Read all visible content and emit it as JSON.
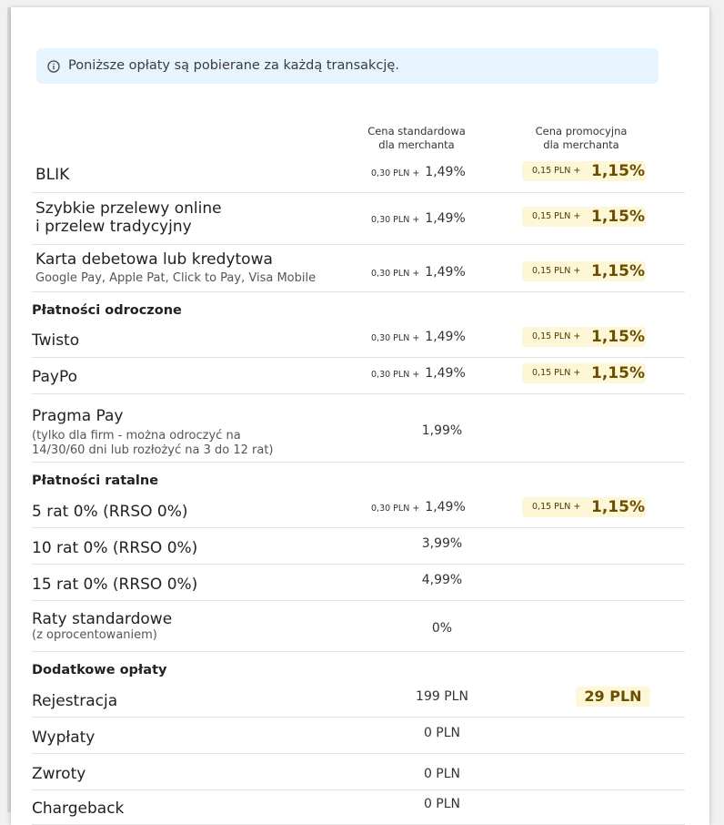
{
  "notice": {
    "text": "Poniższe opłaty są pobierane za każdą transakcję."
  },
  "columns": {
    "standard_line1": "Cena standardowa",
    "standard_line2": "dla merchanta",
    "promo_line1": "Cena promocyjna",
    "promo_line2": "dla merchanta"
  },
  "rows": {
    "blik": {
      "name": "BLIK",
      "std_fixed": "0,30 PLN +",
      "std_pct": "1,49%",
      "promo_fixed": "0,15 PLN +",
      "promo_pct": "1,15%"
    },
    "przelewy": {
      "name1": "Szybkie przelewy online",
      "name2": "i przelew tradycyjny",
      "std_fixed": "0,30 PLN +",
      "std_pct": "1,49%",
      "promo_fixed": "0,15 PLN +",
      "promo_pct": "1,15%"
    },
    "karta": {
      "name": "Karta debetowa lub kredytowa",
      "sub": "Google Pay, Apple Pat, Click to Pay, Visa Mobile",
      "std_fixed": "0,30 PLN +",
      "std_pct": "1,49%",
      "promo_fixed": "0,15 PLN +",
      "promo_pct": "1,15%"
    },
    "twisto": {
      "name": "Twisto",
      "std_fixed": "0,30 PLN +",
      "std_pct": "1,49%",
      "promo_fixed": "0,15 PLN +",
      "promo_pct": "1,15%"
    },
    "paypo": {
      "name": "PayPo",
      "std_fixed": "0,30 PLN +",
      "std_pct": "1,49%",
      "promo_fixed": "0,15 PLN +",
      "promo_pct": "1,15%"
    },
    "pragma": {
      "name": "Pragma Pay",
      "sub1": "(tylko dla firm - można odroczyć na",
      "sub2": "14/30/60 dni lub rozłożyć na 3 do 12 rat)",
      "std": "1,99%"
    },
    "rat5": {
      "name": "5 rat 0% (RRSO 0%)",
      "std_fixed": "0,30 PLN +",
      "std_pct": "1,49%",
      "promo_fixed": "0,15 PLN +",
      "promo_pct": "1,15%"
    },
    "rat10": {
      "name": "10 rat 0% (RRSO 0%)",
      "std": "3,99%"
    },
    "rat15": {
      "name": "15 rat 0% (RRSO 0%)",
      "std": "4,99%"
    },
    "raty_std": {
      "name": "Raty standardowe",
      "sub": "(z oprocentowaniem)",
      "std": "0%"
    },
    "rejestracja": {
      "name": "Rejestracja",
      "std": "199 PLN",
      "promo": "29 PLN"
    },
    "wyplaty": {
      "name": "Wypłaty",
      "std": "0 PLN"
    },
    "zwroty": {
      "name": "Zwroty",
      "std": "0 PLN"
    },
    "chargeback": {
      "name": "Chargeback",
      "std": "0 PLN"
    }
  },
  "sections": {
    "odroczone": "Płatności odroczone",
    "ratalne": "Płatności ratalne",
    "dodatkowe": "Dodatkowe opłaty"
  }
}
